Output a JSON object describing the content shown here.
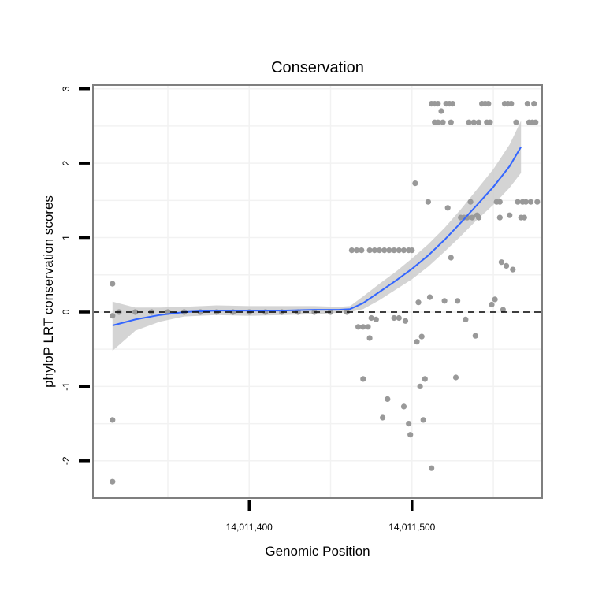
{
  "chart_data": {
    "type": "scatter",
    "title": "Conservation",
    "xlabel": "Genomic Position",
    "ylabel": "phyloP LRT conservation scores",
    "xlim": [
      14011304,
      14011580
    ],
    "ylim": [
      -2.5,
      3.05
    ],
    "x_ticks": [
      {
        "value": 14011400,
        "label": "14,011,400"
      },
      {
        "value": 14011500,
        "label": "14,011,500"
      }
    ],
    "y_ticks": [
      {
        "value": -2,
        "label": "-2"
      },
      {
        "value": -1,
        "label": "-1"
      },
      {
        "value": 0,
        "label": "0"
      },
      {
        "value": 1,
        "label": "1"
      },
      {
        "value": 2,
        "label": "2"
      },
      {
        "value": 3,
        "label": "3"
      }
    ],
    "reference_line": {
      "y": 0,
      "style": "dashed"
    },
    "grid": true,
    "colors": {
      "points": "#999999",
      "smooth_line": "#3366FF",
      "confidence_band": "#cccccc",
      "reference_line": "#000000",
      "grid": "#f2f2f2",
      "panel_border": "#7f7f7f"
    },
    "points": [
      [
        14011316,
        0.38
      ],
      [
        14011316,
        -1.45
      ],
      [
        14011316,
        -0.05
      ],
      [
        14011316,
        -2.28
      ],
      [
        14011320,
        0.0
      ],
      [
        14011330,
        0.0
      ],
      [
        14011340,
        0.0
      ],
      [
        14011350,
        0.0
      ],
      [
        14011360,
        0.0
      ],
      [
        14011370,
        0.0
      ],
      [
        14011380,
        0.0
      ],
      [
        14011390,
        0.0
      ],
      [
        14011400,
        0.0
      ],
      [
        14011410,
        0.0
      ],
      [
        14011420,
        0.0
      ],
      [
        14011430,
        0.0
      ],
      [
        14011440,
        0.0
      ],
      [
        14011450,
        0.0
      ],
      [
        14011460,
        0.0
      ],
      [
        14011463,
        0.83
      ],
      [
        14011466,
        0.83
      ],
      [
        14011469,
        0.83
      ],
      [
        14011467,
        -0.2
      ],
      [
        14011470,
        -0.2
      ],
      [
        14011470,
        -0.9
      ],
      [
        14011473,
        -0.2
      ],
      [
        14011474,
        -0.35
      ],
      [
        14011475,
        -0.08
      ],
      [
        14011478,
        -0.1
      ],
      [
        14011474,
        0.83
      ],
      [
        14011477,
        0.83
      ],
      [
        14011480,
        0.83
      ],
      [
        14011483,
        0.83
      ],
      [
        14011486,
        0.83
      ],
      [
        14011489,
        0.83
      ],
      [
        14011492,
        0.83
      ],
      [
        14011495,
        0.83
      ],
      [
        14011498,
        0.83
      ],
      [
        14011500,
        0.83
      ],
      [
        14011482,
        -1.42
      ],
      [
        14011485,
        -1.17
      ],
      [
        14011489,
        -0.08
      ],
      [
        14011492,
        -0.08
      ],
      [
        14011495,
        -1.27
      ],
      [
        14011496,
        -0.12
      ],
      [
        14011498,
        -1.5
      ],
      [
        14011499,
        -1.65
      ],
      [
        14011502,
        1.73
      ],
      [
        14011503,
        -0.4
      ],
      [
        14011504,
        0.13
      ],
      [
        14011505,
        -1.0
      ],
      [
        14011506,
        -0.33
      ],
      [
        14011507,
        -1.45
      ],
      [
        14011508,
        -0.9
      ],
      [
        14011510,
        1.48
      ],
      [
        14011511,
        0.2
      ],
      [
        14011512,
        2.8
      ],
      [
        14011512,
        -2.1
      ],
      [
        14011514,
        2.8
      ],
      [
        14011514,
        2.55
      ],
      [
        14011516,
        2.8
      ],
      [
        14011516,
        2.55
      ],
      [
        14011518,
        2.7
      ],
      [
        14011519,
        2.55
      ],
      [
        14011521,
        2.8
      ],
      [
        14011523,
        2.8
      ],
      [
        14011525,
        2.8
      ],
      [
        14011520,
        0.15
      ],
      [
        14011522,
        1.4
      ],
      [
        14011524,
        0.73
      ],
      [
        14011524,
        2.55
      ],
      [
        14011527,
        -0.88
      ],
      [
        14011528,
        0.15
      ],
      [
        14011530,
        1.27
      ],
      [
        14011532,
        1.27
      ],
      [
        14011533,
        -0.1
      ],
      [
        14011534,
        1.27
      ],
      [
        14011535,
        2.55
      ],
      [
        14011536,
        1.48
      ],
      [
        14011537,
        1.27
      ],
      [
        14011538,
        2.55
      ],
      [
        14011539,
        -0.32
      ],
      [
        14011540,
        1.3
      ],
      [
        14011541,
        1.27
      ],
      [
        14011541,
        2.55
      ],
      [
        14011543,
        2.8
      ],
      [
        14011545,
        2.8
      ],
      [
        14011546,
        2.55
      ],
      [
        14011547,
        2.8
      ],
      [
        14011548,
        2.55
      ],
      [
        14011549,
        0.1
      ],
      [
        14011551,
        0.17
      ],
      [
        14011552,
        1.48
      ],
      [
        14011554,
        1.27
      ],
      [
        14011554,
        1.48
      ],
      [
        14011555,
        0.67
      ],
      [
        14011556,
        0.03
      ],
      [
        14011557,
        2.8
      ],
      [
        14011558,
        0.62
      ],
      [
        14011559,
        2.8
      ],
      [
        14011560,
        1.3
      ],
      [
        14011561,
        2.8
      ],
      [
        14011562,
        0.57
      ],
      [
        14011564,
        2.55
      ],
      [
        14011565,
        1.48
      ],
      [
        14011567,
        1.27
      ],
      [
        14011568,
        1.48
      ],
      [
        14011569,
        1.27
      ],
      [
        14011570,
        1.48
      ],
      [
        14011571,
        2.8
      ],
      [
        14011572,
        2.55
      ],
      [
        14011573,
        1.48
      ],
      [
        14011574,
        2.55
      ],
      [
        14011575,
        2.8
      ],
      [
        14011576,
        2.55
      ],
      [
        14011577,
        1.48
      ]
    ],
    "smooth": [
      {
        "x": 14011316,
        "y": -0.18,
        "lo": -0.52,
        "hi": 0.14
      },
      {
        "x": 14011330,
        "y": -0.1,
        "lo": -0.25,
        "hi": 0.06
      },
      {
        "x": 14011345,
        "y": -0.04,
        "lo": -0.13,
        "hi": 0.06
      },
      {
        "x": 14011360,
        "y": 0.0,
        "lo": -0.06,
        "hi": 0.07
      },
      {
        "x": 14011380,
        "y": 0.02,
        "lo": -0.04,
        "hi": 0.09
      },
      {
        "x": 14011400,
        "y": 0.02,
        "lo": -0.05,
        "hi": 0.08
      },
      {
        "x": 14011420,
        "y": 0.02,
        "lo": -0.04,
        "hi": 0.08
      },
      {
        "x": 14011440,
        "y": 0.03,
        "lo": -0.03,
        "hi": 0.08
      },
      {
        "x": 14011455,
        "y": 0.03,
        "lo": -0.01,
        "hi": 0.07
      },
      {
        "x": 14011462,
        "y": 0.04,
        "lo": 0.0,
        "hi": 0.08
      },
      {
        "x": 14011470,
        "y": 0.12,
        "lo": 0.04,
        "hi": 0.21
      },
      {
        "x": 14011480,
        "y": 0.27,
        "lo": 0.16,
        "hi": 0.38
      },
      {
        "x": 14011490,
        "y": 0.42,
        "lo": 0.3,
        "hi": 0.54
      },
      {
        "x": 14011500,
        "y": 0.58,
        "lo": 0.44,
        "hi": 0.72
      },
      {
        "x": 14011510,
        "y": 0.76,
        "lo": 0.61,
        "hi": 0.91
      },
      {
        "x": 14011520,
        "y": 0.97,
        "lo": 0.81,
        "hi": 1.13
      },
      {
        "x": 14011530,
        "y": 1.2,
        "lo": 1.02,
        "hi": 1.38
      },
      {
        "x": 14011540,
        "y": 1.44,
        "lo": 1.24,
        "hi": 1.65
      },
      {
        "x": 14011550,
        "y": 1.68,
        "lo": 1.44,
        "hi": 1.92
      },
      {
        "x": 14011560,
        "y": 1.96,
        "lo": 1.67,
        "hi": 2.25
      },
      {
        "x": 14011567,
        "y": 2.22,
        "lo": 1.87,
        "hi": 2.57
      }
    ]
  }
}
